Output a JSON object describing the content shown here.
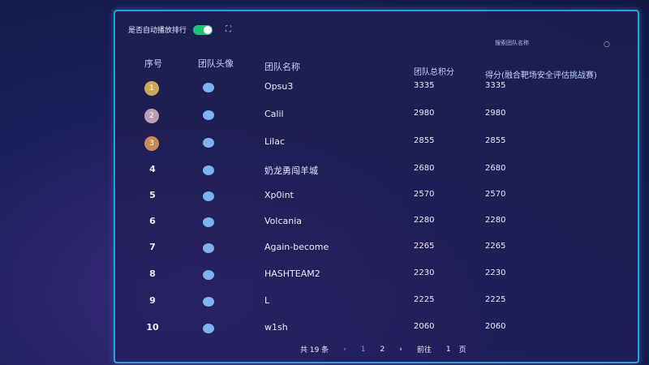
{
  "toolbar": {
    "autoplay_label": "是否自动播放排行",
    "autoplay_on": true,
    "expand_icon": "expand-icon"
  },
  "search": {
    "placeholder": "搜索团队名称",
    "icon": "search-icon"
  },
  "columns": [
    "序号",
    "团队头像",
    "团队名称",
    "团队总积分",
    "得分(融合靶场安全评估挑战赛)"
  ],
  "rows": [
    {
      "rank": "1",
      "name": "Opsu3",
      "total": "3335",
      "score": "3335",
      "medal": "#c9a85a"
    },
    {
      "rank": "2",
      "name": "Calil",
      "total": "2980",
      "score": "2980",
      "medal": "#b9a0b0"
    },
    {
      "rank": "3",
      "name": "Lilac",
      "total": "2855",
      "score": "2855",
      "medal": "#c98a5a"
    },
    {
      "rank": "4",
      "name": "奶龙勇闯羊城",
      "total": "2680",
      "score": "2680"
    },
    {
      "rank": "5",
      "name": "Xp0int",
      "total": "2570",
      "score": "2570"
    },
    {
      "rank": "6",
      "name": "Volcania",
      "total": "2280",
      "score": "2280"
    },
    {
      "rank": "7",
      "name": "Again-become",
      "total": "2265",
      "score": "2265"
    },
    {
      "rank": "8",
      "name": "HASHTEAM2",
      "total": "2230",
      "score": "2230"
    },
    {
      "rank": "9",
      "name": "L",
      "total": "2225",
      "score": "2225"
    },
    {
      "rank": "10",
      "name": "w1sh",
      "total": "2060",
      "score": "2060"
    }
  ],
  "pagination": {
    "total": "共 19 条",
    "prev": "‹",
    "pages": [
      "1",
      "2"
    ],
    "current": "1",
    "next": "›",
    "goto_label": "前往",
    "goto_value": "1",
    "page_unit": "页"
  }
}
